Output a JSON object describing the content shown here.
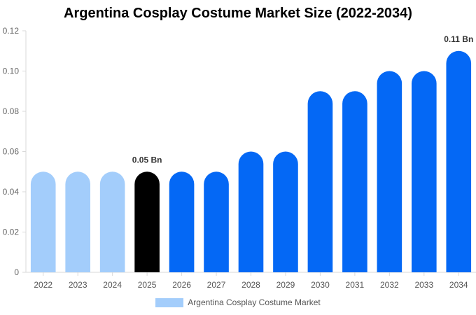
{
  "chart_data": {
    "type": "bar",
    "title": "Argentina Cosplay Costume Market Size (2022-2034)",
    "categories": [
      "2022",
      "2023",
      "2024",
      "2025",
      "2026",
      "2027",
      "2028",
      "2029",
      "2030",
      "2031",
      "2032",
      "2033",
      "2034"
    ],
    "series": [
      {
        "name": "Argentina Cosplay Costume Market",
        "values": [
          0.05,
          0.05,
          0.05,
          0.05,
          0.05,
          0.05,
          0.06,
          0.06,
          0.09,
          0.09,
          0.1,
          0.1,
          0.11
        ]
      }
    ],
    "ylim": [
      0,
      0.12
    ],
    "yticks": [
      "0",
      "0.02",
      "0.04",
      "0.06",
      "0.08",
      "0.10",
      "0.12"
    ],
    "data_labels": [
      {
        "category": "2025",
        "text": "0.05 Bn"
      },
      {
        "category": "2034",
        "text": "0.11 Bn"
      }
    ],
    "colors": {
      "historical": "#a3cdfb",
      "current": "#000000",
      "forecast": "#0468f5"
    },
    "historical_categories": [
      "2022",
      "2023",
      "2024"
    ],
    "current_category": "2025",
    "legend_placement": "bottom-center",
    "grid": false
  }
}
